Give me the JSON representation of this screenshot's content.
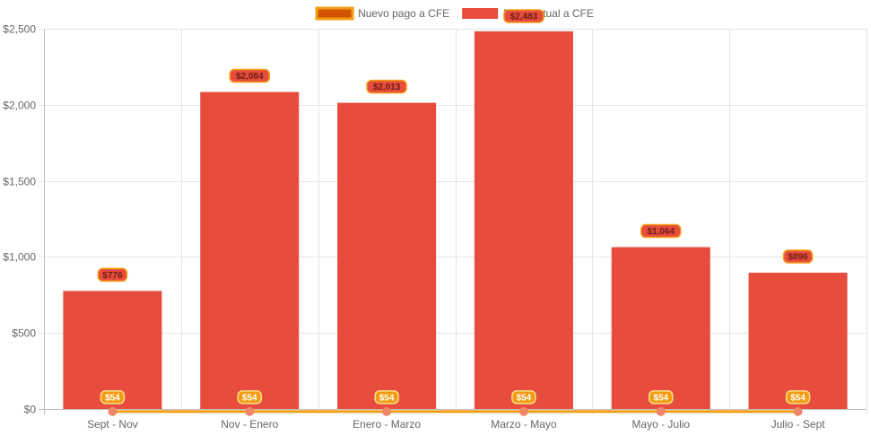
{
  "chart_data": {
    "type": "bar",
    "categories": [
      "Sept - Nov",
      "Nov - Enero",
      "Enero - Marzo",
      "Marzo - Mayo",
      "Mayo - Julio",
      "Julio - Sept"
    ],
    "series": [
      {
        "name": "Nuevo pago a CFE",
        "kind": "line",
        "values": [
          54,
          54,
          54,
          54,
          54,
          54
        ],
        "labels": [
          "$54",
          "$54",
          "$54",
          "$54",
          "$54",
          "$54"
        ],
        "color": "#f39c12",
        "legend_fill": "#d35400",
        "point_color": "#f0866a"
      },
      {
        "name": "Pago actual a CFE",
        "kind": "bar",
        "values": [
          776,
          2084,
          2013,
          2483,
          1064,
          896
        ],
        "labels": [
          "$776",
          "$2,084",
          "$2,013",
          "$2,483",
          "$1,064",
          "$896"
        ],
        "color": "#e74c3c"
      }
    ],
    "ylim": [
      0,
      2500
    ],
    "yticks": [
      0,
      500,
      1000,
      1500,
      2000,
      2500
    ],
    "ytick_labels": [
      "$0",
      "$500",
      "$1,000",
      "$1,500",
      "$2,000",
      "$2,500"
    ],
    "grid": true,
    "legend": "top-center",
    "title": "",
    "xlabel": "",
    "ylabel": ""
  }
}
